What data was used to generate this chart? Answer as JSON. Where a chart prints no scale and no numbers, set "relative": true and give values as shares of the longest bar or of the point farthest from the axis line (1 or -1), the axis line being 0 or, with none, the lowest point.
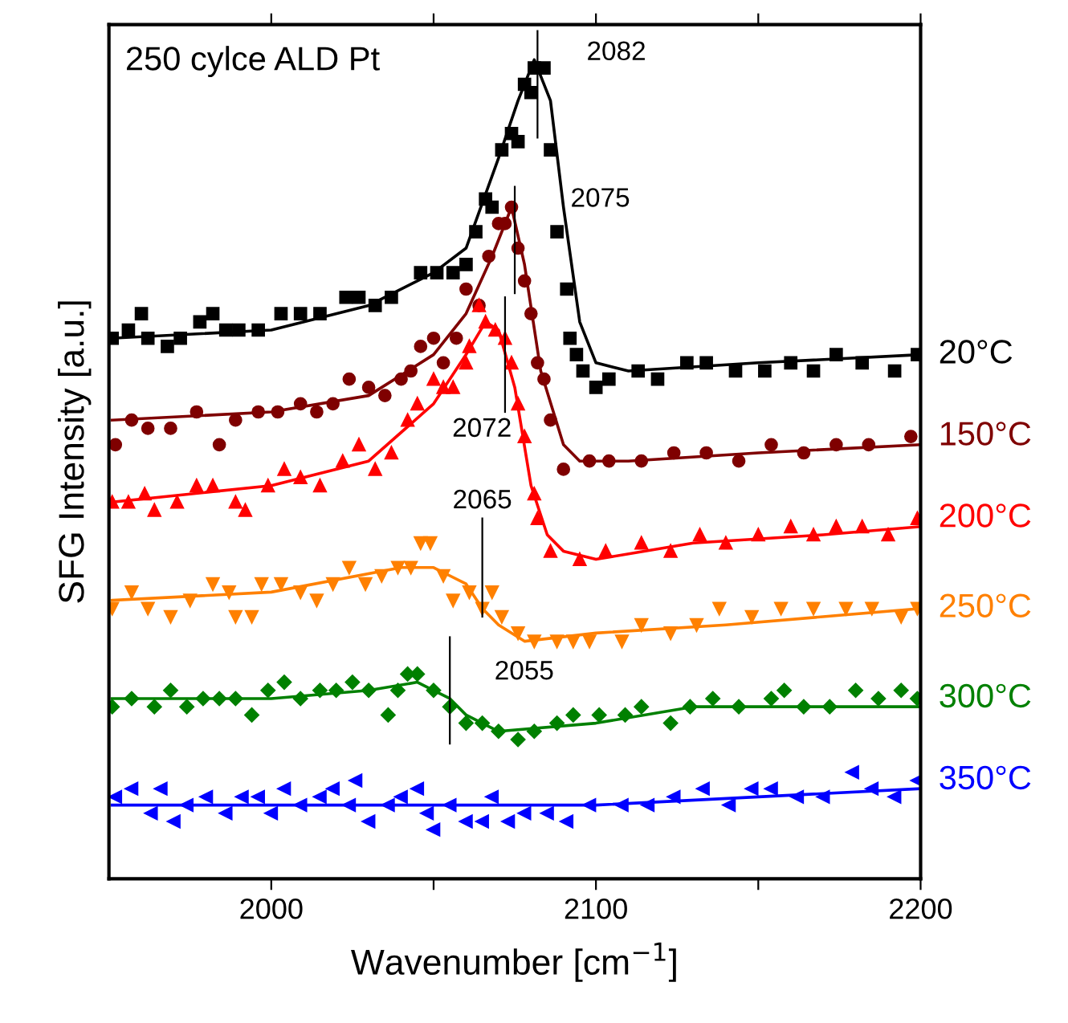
{
  "chart_data": {
    "type": "scatter",
    "relative": true,
    "title": "250 cylce ALD Pt",
    "xlabel": "Wavenumber [cm$^{−1}$]",
    "ylabel": "SFG Intensity [a.u.]",
    "xlim": [
      1950,
      2200
    ],
    "xticks": [
      {
        "value": 2000,
        "label": "2000"
      },
      {
        "value": 2050,
        "label": null
      },
      {
        "value": 2100,
        "label": "2100"
      },
      {
        "value": 2150,
        "label": null
      },
      {
        "value": 2200,
        "label": "2200"
      }
    ],
    "tick_labels": "x",
    "grid": false,
    "legend": false,
    "annotations": [
      {
        "text": "2082",
        "x": 2082,
        "y": 0.97
      },
      {
        "text": "2075",
        "x": 2075,
        "y": 0.78
      },
      {
        "text": "2072",
        "x": 2072,
        "y": 0.57
      },
      {
        "text": "2065",
        "x": 2065,
        "y": 0.33
      },
      {
        "text": "2055",
        "x": 2055,
        "y": 0.23
      }
    ],
    "series": [
      {
        "name": "20°C",
        "color": "#000000",
        "marker": "square",
        "x": [
          1951,
          1956,
          1960,
          1962,
          1968,
          1972,
          1978,
          1982,
          1986,
          1990,
          1996,
          2003,
          2009,
          2015,
          2023,
          2027,
          2032,
          2037,
          2046,
          2051,
          2056,
          2060,
          2063,
          2066,
          2068,
          2071,
          2074,
          2076,
          2078,
          2080,
          2081,
          2084,
          2086,
          2088,
          2091,
          2092,
          2094,
          2096,
          2100,
          2104,
          2113,
          2119,
          2128,
          2134,
          2143,
          2152,
          2160,
          2167,
          2174,
          2182,
          2192,
          2199
        ],
        "values": [
          0.66,
          0.67,
          0.69,
          0.66,
          0.65,
          0.66,
          0.68,
          0.69,
          0.67,
          0.67,
          0.67,
          0.69,
          0.69,
          0.69,
          0.71,
          0.71,
          0.7,
          0.71,
          0.74,
          0.74,
          0.74,
          0.75,
          0.79,
          0.83,
          0.82,
          0.89,
          0.91,
          0.9,
          0.97,
          0.96,
          0.99,
          0.99,
          0.89,
          0.79,
          0.72,
          0.66,
          0.64,
          0.62,
          0.6,
          0.61,
          0.62,
          0.61,
          0.63,
          0.63,
          0.62,
          0.62,
          0.63,
          0.62,
          0.64,
          0.63,
          0.62,
          0.64
        ]
      },
      {
        "type": "line",
        "color": "#000000",
        "x": [
          1951,
          2000,
          2030,
          2050,
          2060,
          2070,
          2076,
          2081,
          2086,
          2090,
          2095,
          2100,
          2110,
          2150,
          2200
        ],
        "values": [
          0.66,
          0.67,
          0.7,
          0.74,
          0.77,
          0.88,
          0.95,
          1.0,
          0.95,
          0.82,
          0.68,
          0.63,
          0.62,
          0.63,
          0.64
        ]
      },
      {
        "name": "150°C",
        "color": "#7f0000",
        "marker": "circle",
        "x": [
          1952,
          1957,
          1962,
          1969,
          1977,
          1984,
          1989,
          1996,
          2002,
          2009,
          2014,
          2019,
          2024,
          2030,
          2035,
          2040,
          2043,
          2046,
          2050,
          2053,
          2057,
          2060,
          2064,
          2067,
          2070,
          2072,
          2074,
          2076,
          2078,
          2080,
          2082,
          2084,
          2086,
          2090,
          2098,
          2104,
          2114,
          2124,
          2134,
          2144,
          2154,
          2164,
          2174,
          2184,
          2197
        ],
        "values": [
          0.53,
          0.56,
          0.55,
          0.55,
          0.57,
          0.53,
          0.56,
          0.57,
          0.57,
          0.58,
          0.57,
          0.58,
          0.61,
          0.6,
          0.59,
          0.61,
          0.62,
          0.65,
          0.66,
          0.63,
          0.66,
          0.72,
          0.7,
          0.76,
          0.8,
          0.8,
          0.82,
          0.77,
          0.73,
          0.69,
          0.63,
          0.61,
          0.56,
          0.5,
          0.51,
          0.51,
          0.51,
          0.52,
          0.52,
          0.51,
          0.53,
          0.52,
          0.53,
          0.53,
          0.54
        ]
      },
      {
        "type": "line",
        "color": "#7f0000",
        "x": [
          1951,
          2000,
          2030,
          2050,
          2060,
          2068,
          2074,
          2078,
          2083,
          2090,
          2095,
          2110,
          2150,
          2200
        ],
        "values": [
          0.56,
          0.57,
          0.59,
          0.64,
          0.69,
          0.76,
          0.82,
          0.75,
          0.62,
          0.53,
          0.51,
          0.51,
          0.52,
          0.53
        ]
      },
      {
        "name": "200°C",
        "color": "#ff0000",
        "marker": "triangle",
        "x": [
          1951,
          1956,
          1961,
          1964,
          1971,
          1977,
          1982,
          1989,
          1992,
          1999,
          2004,
          2009,
          2015,
          2022,
          2027,
          2032,
          2037,
          2042,
          2045,
          2050,
          2053,
          2056,
          2060,
          2061,
          2064,
          2066,
          2069,
          2072,
          2074,
          2076,
          2078,
          2081,
          2082,
          2086,
          2095,
          2103,
          2114,
          2123,
          2132,
          2140,
          2150,
          2160,
          2167,
          2174,
          2182,
          2190,
          2199
        ],
        "values": [
          0.46,
          0.46,
          0.47,
          0.45,
          0.46,
          0.48,
          0.48,
          0.46,
          0.45,
          0.48,
          0.5,
          0.49,
          0.48,
          0.51,
          0.53,
          0.5,
          0.52,
          0.56,
          0.58,
          0.61,
          0.6,
          0.6,
          0.63,
          0.65,
          0.7,
          0.68,
          0.67,
          0.66,
          0.63,
          0.58,
          0.54,
          0.47,
          0.44,
          0.4,
          0.39,
          0.4,
          0.41,
          0.4,
          0.42,
          0.41,
          0.42,
          0.43,
          0.42,
          0.43,
          0.43,
          0.42,
          0.44
        ]
      },
      {
        "type": "line",
        "color": "#ff0000",
        "x": [
          1951,
          2000,
          2030,
          2050,
          2060,
          2066,
          2070,
          2075,
          2080,
          2085,
          2090,
          2100,
          2130,
          2170,
          2200
        ],
        "values": [
          0.46,
          0.48,
          0.51,
          0.58,
          0.64,
          0.68,
          0.67,
          0.6,
          0.48,
          0.42,
          0.4,
          0.39,
          0.41,
          0.42,
          0.43
        ]
      },
      {
        "name": "250°C",
        "color": "#ff8000",
        "marker": "triangle_down",
        "x": [
          1951,
          1957,
          1962,
          1969,
          1975,
          1982,
          1987,
          1989,
          1994,
          1997,
          2003,
          2009,
          2014,
          2019,
          2024,
          2029,
          2034,
          2039,
          2043,
          2046,
          2049,
          2053,
          2056,
          2061,
          2065,
          2068,
          2071,
          2076,
          2081,
          2088,
          2093,
          2098,
          2108,
          2114,
          2123,
          2131,
          2138,
          2148,
          2157,
          2167,
          2177,
          2185,
          2194,
          2199
        ],
        "values": [
          0.33,
          0.35,
          0.33,
          0.32,
          0.34,
          0.36,
          0.35,
          0.32,
          0.32,
          0.36,
          0.36,
          0.35,
          0.34,
          0.36,
          0.38,
          0.36,
          0.37,
          0.38,
          0.38,
          0.41,
          0.41,
          0.37,
          0.34,
          0.35,
          0.33,
          0.35,
          0.32,
          0.3,
          0.29,
          0.29,
          0.29,
          0.29,
          0.29,
          0.31,
          0.3,
          0.31,
          0.33,
          0.32,
          0.33,
          0.33,
          0.33,
          0.33,
          0.32,
          0.33
        ]
      },
      {
        "type": "line",
        "color": "#ff8000",
        "x": [
          1951,
          2000,
          2040,
          2050,
          2055,
          2060,
          2065,
          2070,
          2078,
          2100,
          2140,
          2200
        ],
        "values": [
          0.34,
          0.35,
          0.38,
          0.38,
          0.37,
          0.36,
          0.33,
          0.31,
          0.29,
          0.3,
          0.31,
          0.33
        ]
      },
      {
        "name": "300°C",
        "color": "#008000",
        "marker": "diamond",
        "x": [
          1951,
          1957,
          1964,
          1969,
          1974,
          1979,
          1984,
          1989,
          1994,
          1999,
          2004,
          2009,
          2015,
          2020,
          2025,
          2030,
          2036,
          2039,
          2042,
          2045,
          2050,
          2055,
          2060,
          2065,
          2070,
          2076,
          2081,
          2088,
          2093,
          2101,
          2109,
          2114,
          2123,
          2129,
          2136,
          2144,
          2154,
          2158,
          2164,
          2172,
          2180,
          2187,
          2194,
          2199
        ],
        "values": [
          0.21,
          0.22,
          0.21,
          0.23,
          0.21,
          0.22,
          0.22,
          0.22,
          0.2,
          0.23,
          0.24,
          0.22,
          0.23,
          0.23,
          0.24,
          0.23,
          0.2,
          0.23,
          0.25,
          0.25,
          0.23,
          0.21,
          0.19,
          0.19,
          0.18,
          0.17,
          0.18,
          0.19,
          0.2,
          0.2,
          0.2,
          0.21,
          0.19,
          0.21,
          0.22,
          0.21,
          0.22,
          0.23,
          0.21,
          0.21,
          0.23,
          0.22,
          0.23,
          0.22
        ]
      },
      {
        "type": "line",
        "color": "#008000",
        "x": [
          1951,
          2000,
          2030,
          2045,
          2050,
          2055,
          2060,
          2065,
          2070,
          2100,
          2130,
          2200
        ],
        "values": [
          0.22,
          0.22,
          0.23,
          0.24,
          0.23,
          0.22,
          0.2,
          0.19,
          0.18,
          0.19,
          0.21,
          0.21
        ]
      },
      {
        "name": "350°C",
        "color": "#0000ff",
        "marker": "triangle_left",
        "x": [
          1952,
          1957,
          1963,
          1966,
          1970,
          1974,
          1980,
          1986,
          1991,
          1996,
          2000,
          2004,
          2009,
          2015,
          2019,
          2024,
          2026,
          2030,
          2036,
          2040,
          2045,
          2048,
          2050,
          2055,
          2060,
          2065,
          2068,
          2073,
          2078,
          2085,
          2091,
          2098,
          2108,
          2116,
          2124,
          2133,
          2141,
          2148,
          2154,
          2162,
          2170,
          2179,
          2185,
          2192,
          2199
        ],
        "values": [
          0.1,
          0.11,
          0.08,
          0.11,
          0.07,
          0.09,
          0.1,
          0.08,
          0.1,
          0.1,
          0.08,
          0.11,
          0.09,
          0.1,
          0.11,
          0.09,
          0.12,
          0.07,
          0.09,
          0.1,
          0.11,
          0.08,
          0.06,
          0.09,
          0.07,
          0.07,
          0.1,
          0.07,
          0.08,
          0.08,
          0.07,
          0.09,
          0.09,
          0.09,
          0.1,
          0.11,
          0.09,
          0.11,
          0.11,
          0.1,
          0.1,
          0.13,
          0.11,
          0.1,
          0.12
        ]
      },
      {
        "type": "line",
        "color": "#0000ff",
        "x": [
          1951,
          2000,
          2060,
          2100,
          2150,
          2200
        ],
        "values": [
          0.09,
          0.09,
          0.09,
          0.09,
          0.1,
          0.11
        ]
      }
    ]
  }
}
